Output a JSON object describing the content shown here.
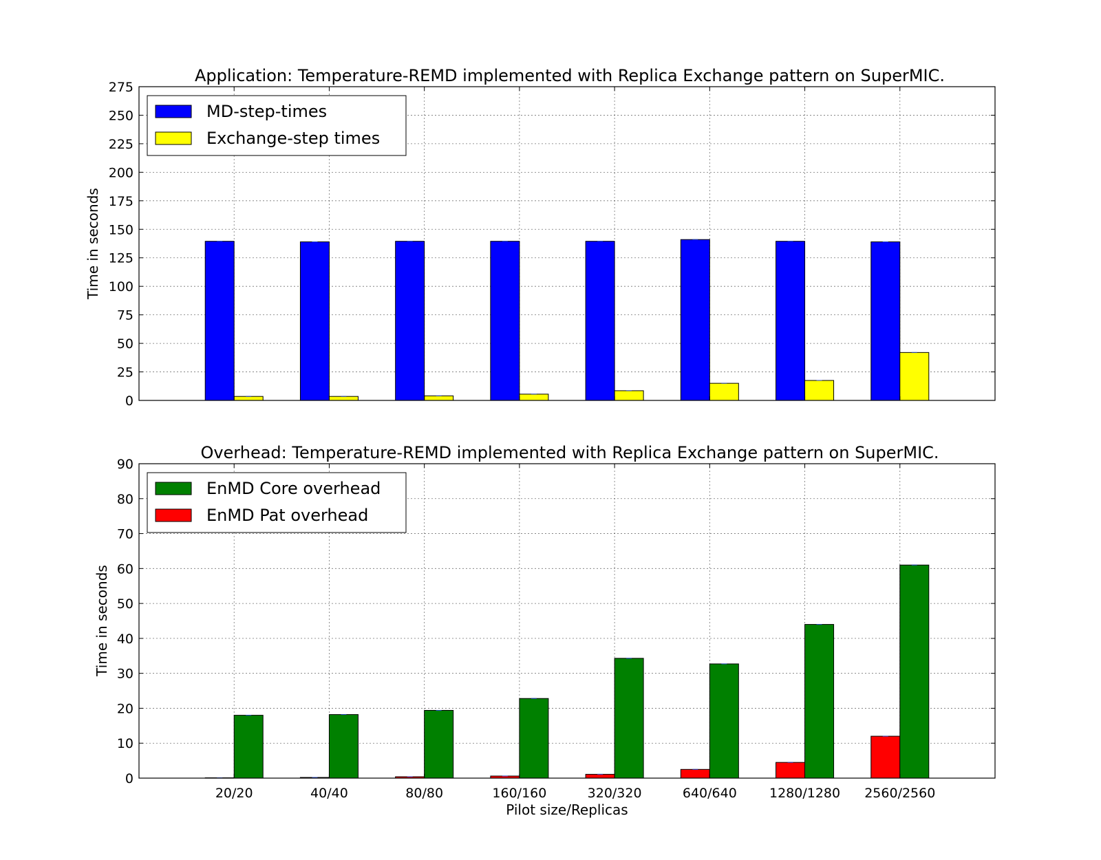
{
  "chart_data": [
    {
      "type": "bar",
      "title": "Application: Temperature-REMD implemented with Replica Exchange pattern on SuperMIC.",
      "xlabel": "",
      "ylabel": "Time in seconds",
      "ylim": [
        0,
        275
      ],
      "yticks": [
        0,
        25,
        50,
        75,
        100,
        125,
        150,
        175,
        200,
        225,
        250,
        275
      ],
      "grid": true,
      "legend": "top-left",
      "categories": [
        "20/20",
        "40/40",
        "80/80",
        "160/160",
        "320/320",
        "640/640",
        "1280/1280",
        "2560/2560"
      ],
      "series": [
        {
          "name": "MD-step-times",
          "color": "#0000ff",
          "values": [
            139.5,
            139,
            139.5,
            139.5,
            139.5,
            141,
            139.5,
            139
          ]
        },
        {
          "name": "Exchange-step times",
          "color": "#ffff00",
          "values": [
            3.5,
            3.5,
            4,
            5.5,
            8.5,
            15,
            17.5,
            42
          ]
        }
      ]
    },
    {
      "type": "bar",
      "title": "Overhead: Temperature-REMD implemented with Replica Exchange pattern on SuperMIC.",
      "xlabel": "Pilot size/Replicas",
      "ylabel": "Time in seconds",
      "ylim": [
        0,
        90
      ],
      "yticks": [
        0,
        10,
        20,
        30,
        40,
        50,
        60,
        70,
        80,
        90
      ],
      "grid": true,
      "legend": "top-left",
      "categories": [
        "20/20",
        "40/40",
        "80/80",
        "160/160",
        "320/320",
        "640/640",
        "1280/1280",
        "2560/2560"
      ],
      "series": [
        {
          "name": "EnMD Pat overhead",
          "color": "#ff0000",
          "values": [
            0.1,
            0.2,
            0.4,
            0.6,
            1.1,
            2.5,
            4.5,
            12
          ]
        },
        {
          "name": "EnMD Core overhead",
          "color": "#008000",
          "values": [
            18,
            18.2,
            19.4,
            22.8,
            34.3,
            32.7,
            44,
            61
          ]
        }
      ],
      "legend_order": [
        1,
        0
      ]
    }
  ]
}
